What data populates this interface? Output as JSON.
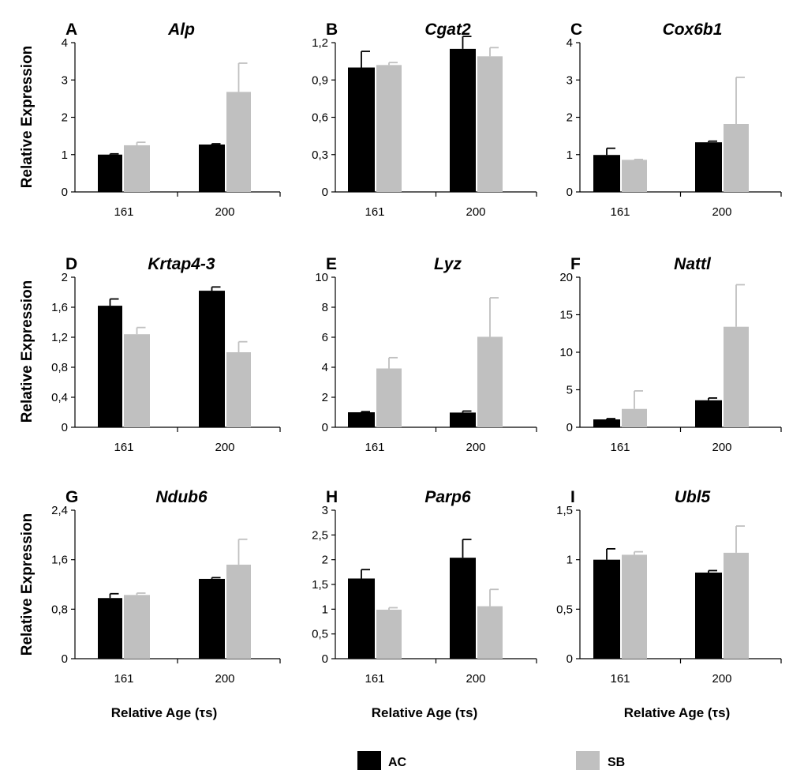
{
  "chart_data": {
    "type": "bar",
    "y_axis_label": "Relative Expression",
    "x_axis_label": "Relative Age (τs)",
    "categories": [
      "161",
      "200"
    ],
    "legend": {
      "placement": "bottom",
      "entries": [
        {
          "name": "AC",
          "color": "#000000"
        },
        {
          "name": "SB",
          "color": "#c0c0c0"
        }
      ]
    },
    "panels": [
      {
        "letter": "A",
        "title": "Alp",
        "ylim": [
          0,
          4
        ],
        "yticks": [
          "0",
          "1",
          "2",
          "3",
          "4"
        ],
        "series": [
          {
            "name": "AC",
            "values": [
              1.0,
              1.27
            ],
            "errors": [
              0.02,
              0.02
            ]
          },
          {
            "name": "SB",
            "values": [
              1.25,
              2.68
            ],
            "errors": [
              0.08,
              0.77
            ]
          }
        ]
      },
      {
        "letter": "B",
        "title": "Cgat2",
        "ylim": [
          0,
          1.2
        ],
        "yticks": [
          "0",
          "0,3",
          "0,6",
          "0,9",
          "1,2"
        ],
        "series": [
          {
            "name": "AC",
            "values": [
              1.0,
              1.15
            ],
            "errors": [
              0.13,
              0.1
            ]
          },
          {
            "name": "SB",
            "values": [
              1.02,
              1.09
            ],
            "errors": [
              0.02,
              0.07
            ]
          }
        ]
      },
      {
        "letter": "C",
        "title": "Cox6b1",
        "ylim": [
          0,
          4
        ],
        "yticks": [
          "0",
          "1",
          "2",
          "3",
          "4"
        ],
        "series": [
          {
            "name": "AC",
            "values": [
              0.99,
              1.33
            ],
            "errors": [
              0.18,
              0.03
            ]
          },
          {
            "name": "SB",
            "values": [
              0.86,
              1.82
            ],
            "errors": [
              0.01,
              1.25
            ]
          }
        ]
      },
      {
        "letter": "D",
        "title": "Krtap4-3",
        "ylim": [
          0,
          2
        ],
        "yticks": [
          "0",
          "0,4",
          "0,8",
          "1,2",
          "1,6",
          "2"
        ],
        "series": [
          {
            "name": "AC",
            "values": [
              1.62,
              1.82
            ],
            "errors": [
              0.09,
              0.05
            ]
          },
          {
            "name": "SB",
            "values": [
              1.24,
              1.0
            ],
            "errors": [
              0.09,
              0.14
            ]
          }
        ]
      },
      {
        "letter": "E",
        "title": "Lyz",
        "ylim": [
          0,
          10
        ],
        "yticks": [
          "0",
          "2",
          "4",
          "6",
          "8",
          "10"
        ],
        "series": [
          {
            "name": "AC",
            "values": [
              1.0,
              0.98
            ],
            "errors": [
              0.04,
              0.1
            ]
          },
          {
            "name": "SB",
            "values": [
              3.92,
              6.03
            ],
            "errors": [
              0.72,
              2.6
            ]
          }
        ]
      },
      {
        "letter": "F",
        "title": "Nattl",
        "ylim": [
          0,
          20
        ],
        "yticks": [
          "0",
          "5",
          "10",
          "15",
          "20"
        ],
        "series": [
          {
            "name": "AC",
            "values": [
              1.05,
              3.6
            ],
            "errors": [
              0.1,
              0.3
            ]
          },
          {
            "name": "SB",
            "values": [
              2.45,
              13.4
            ],
            "errors": [
              2.4,
              5.6
            ]
          }
        ]
      },
      {
        "letter": "G",
        "title": "Ndub6",
        "ylim": [
          0,
          2.4
        ],
        "yticks": [
          "0",
          "0,8",
          "1,6",
          "2,4"
        ],
        "series": [
          {
            "name": "AC",
            "values": [
              0.98,
              1.29
            ],
            "errors": [
              0.07,
              0.02
            ]
          },
          {
            "name": "SB",
            "values": [
              1.03,
              1.52
            ],
            "errors": [
              0.03,
              0.41
            ]
          }
        ]
      },
      {
        "letter": "H",
        "title": "Parp6",
        "ylim": [
          0,
          3
        ],
        "yticks": [
          "0",
          "0,5",
          "1",
          "1,5",
          "2",
          "2,5",
          "3"
        ],
        "series": [
          {
            "name": "AC",
            "values": [
              1.62,
              2.04
            ],
            "errors": [
              0.18,
              0.37
            ]
          },
          {
            "name": "SB",
            "values": [
              0.99,
              1.06
            ],
            "errors": [
              0.04,
              0.34
            ]
          }
        ]
      },
      {
        "letter": "I",
        "title": "Ubl5",
        "ylim": [
          0,
          1.5
        ],
        "yticks": [
          "0",
          "0,5",
          "1",
          "1,5"
        ],
        "series": [
          {
            "name": "AC",
            "values": [
              1.0,
              0.87
            ],
            "errors": [
              0.11,
              0.02
            ]
          },
          {
            "name": "SB",
            "values": [
              1.05,
              1.07
            ],
            "errors": [
              0.03,
              0.27
            ]
          }
        ]
      }
    ]
  }
}
